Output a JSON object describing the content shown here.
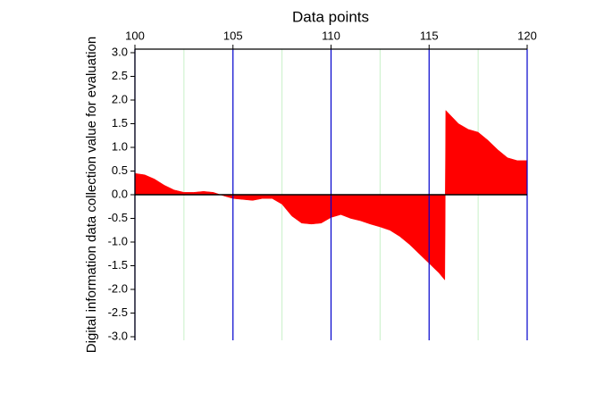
{
  "chart_data": {
    "type": "area",
    "x_label": "Data points",
    "y_label": "Digital information data collection value for evaluation",
    "x": [
      100,
      100.5,
      101,
      101.5,
      102,
      102.5,
      103,
      103.5,
      104,
      104.5,
      105,
      105.5,
      106,
      106.5,
      107,
      107.5,
      108,
      108.5,
      109,
      109.5,
      110,
      110.5,
      111,
      111.5,
      112,
      112.5,
      113,
      113.5,
      114,
      114.5,
      115,
      115.5,
      115.8,
      115.85,
      116.5,
      117,
      117.5,
      118,
      118.5,
      119,
      119.5,
      120
    ],
    "values": [
      0.45,
      0.42,
      0.33,
      0.2,
      0.1,
      0.05,
      0.05,
      0.07,
      0.05,
      -0.02,
      -0.08,
      -0.1,
      -0.12,
      -0.08,
      -0.08,
      -0.2,
      -0.45,
      -0.6,
      -0.62,
      -0.6,
      -0.48,
      -0.42,
      -0.5,
      -0.55,
      -0.62,
      -0.68,
      -0.75,
      -0.88,
      -1.05,
      -1.25,
      -1.45,
      -1.65,
      -1.8,
      1.78,
      1.5,
      1.38,
      1.32,
      1.15,
      0.95,
      0.78,
      0.72,
      0.72
    ],
    "color": "#ff0000",
    "xlim": [
      100,
      120
    ],
    "xticks": [
      100,
      105,
      110,
      115,
      120
    ],
    "x_axis_position": "top",
    "ylim": [
      -3,
      3
    ],
    "yticks": [
      {
        "value": -3,
        "label": "-3.0"
      },
      {
        "value": -2.5,
        "label": "-2.5"
      },
      {
        "value": -2,
        "label": "-2.0"
      },
      {
        "value": -1.5,
        "label": "-1.5"
      },
      {
        "value": -1,
        "label": "-1.0"
      },
      {
        "value": -0.5,
        "label": "-0.5"
      },
      {
        "value": 0,
        "label": "0.0"
      },
      {
        "value": 0.5,
        "label": "0.5"
      },
      {
        "value": 1,
        "label": "1.0"
      },
      {
        "value": 1.5,
        "label": "1.5"
      },
      {
        "value": 2,
        "label": "2.0"
      },
      {
        "value": 2.5,
        "label": "2.5"
      },
      {
        "value": 3,
        "label": "3.0"
      }
    ],
    "grid": true,
    "grid_color": "#0000cc",
    "minor_xticks": [
      102.5,
      107.5,
      112.5,
      117.5
    ],
    "minor_grid_color": "#c8f0c8"
  }
}
